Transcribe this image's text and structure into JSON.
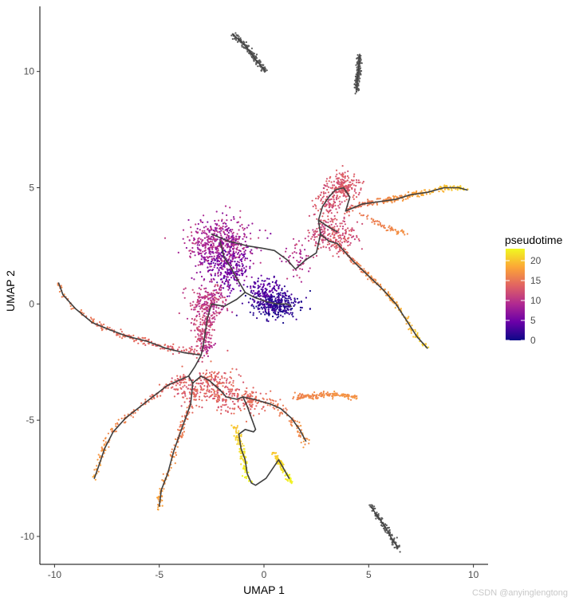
{
  "chart_data": {
    "type": "scatter",
    "xlabel": "UMAP 1",
    "ylabel": "UMAP 2",
    "xlim": [
      -10.7,
      10.7
    ],
    "ylim": [
      -11.2,
      12.8
    ],
    "x_ticks": [
      -10,
      -5,
      0,
      5,
      10
    ],
    "y_ticks": [
      -10,
      -5,
      0,
      5,
      10
    ],
    "grid": false,
    "legend": {
      "title": "pseudotime",
      "placement": "right",
      "range": [
        0,
        23
      ],
      "ticks": [
        0,
        5,
        10,
        15,
        20
      ],
      "colormap": [
        "#0d0887",
        "#6a00a8",
        "#b12a90",
        "#e16462",
        "#fca636",
        "#f0f921"
      ]
    },
    "na_color": "#595959",
    "trajectory_color": "#404040",
    "clusters": [
      {
        "cx": -2.1,
        "cy": 2.6,
        "sx": 0.75,
        "sy": 0.55,
        "n": 520,
        "t": [
          6,
          11
        ]
      },
      {
        "cx": -1.7,
        "cy": 1.5,
        "sx": 0.5,
        "sy": 0.5,
        "n": 260,
        "t": [
          3,
          8
        ]
      },
      {
        "cx": 0.6,
        "cy": 0.0,
        "sx": 0.55,
        "sy": 0.3,
        "n": 320,
        "t": [
          0,
          3
        ]
      },
      {
        "cx": 0.0,
        "cy": 0.6,
        "sx": 0.4,
        "sy": 0.3,
        "n": 120,
        "t": [
          2,
          5
        ]
      },
      {
        "cx": -2.6,
        "cy": 0.0,
        "sx": 0.45,
        "sy": 0.4,
        "n": 200,
        "t": [
          8,
          12
        ]
      },
      {
        "cx": -2.9,
        "cy": -1.2,
        "sx": 0.25,
        "sy": 0.55,
        "n": 140,
        "t": [
          10,
          13
        ]
      },
      {
        "cx": 1.6,
        "cy": 1.9,
        "sx": 0.35,
        "sy": 0.35,
        "n": 60,
        "t": [
          8,
          11
        ]
      },
      {
        "cx": 3.8,
        "cy": 5.1,
        "sx": 0.35,
        "sy": 0.3,
        "n": 200,
        "t": [
          12,
          14
        ]
      },
      {
        "cx": 3.1,
        "cy": 4.2,
        "sx": 0.35,
        "sy": 0.5,
        "n": 130,
        "t": [
          11,
          14
        ]
      },
      {
        "cx": 3.5,
        "cy": 2.9,
        "sx": 0.5,
        "sy": 0.35,
        "n": 160,
        "t": [
          11,
          14
        ]
      },
      {
        "cx": 2.6,
        "cy": 3.0,
        "sx": 0.25,
        "sy": 0.3,
        "n": 60,
        "t": [
          10,
          13
        ]
      },
      {
        "cx": -2.5,
        "cy": -3.5,
        "sx": 0.55,
        "sy": 0.4,
        "n": 200,
        "t": [
          12,
          15
        ]
      },
      {
        "cx": -1.7,
        "cy": -4.1,
        "sx": 0.4,
        "sy": 0.35,
        "n": 90,
        "t": [
          12,
          15
        ]
      },
      {
        "cx": -0.6,
        "cy": -4.2,
        "sx": 0.3,
        "sy": 0.25,
        "n": 60,
        "t": [
          13,
          15
        ]
      },
      {
        "cx": -3.8,
        "cy": -3.7,
        "sx": 0.3,
        "sy": 0.25,
        "n": 50,
        "t": [
          12,
          15
        ]
      }
    ],
    "branches": [
      {
        "pts": [
          [
            -3.1,
            -2.1
          ],
          [
            -4.5,
            -1.9
          ],
          [
            -6.5,
            -1.4
          ],
          [
            -8.0,
            -0.9
          ],
          [
            -9.0,
            -0.2
          ],
          [
            -9.6,
            0.4
          ],
          [
            -9.8,
            0.9
          ]
        ],
        "t": [
          13,
          16
        ],
        "w": 0.08,
        "n": 180
      },
      {
        "pts": [
          [
            -3.6,
            -3.1
          ],
          [
            -4.6,
            -3.5
          ],
          [
            -5.6,
            -4.2
          ],
          [
            -6.6,
            -4.9
          ],
          [
            -7.4,
            -5.6
          ],
          [
            -7.8,
            -6.6
          ],
          [
            -8.1,
            -7.5
          ]
        ],
        "t": [
          13,
          18
        ],
        "w": 0.08,
        "n": 150
      },
      {
        "pts": [
          [
            -3.2,
            -3.6
          ],
          [
            -3.5,
            -4.3
          ],
          [
            -3.9,
            -5.3
          ],
          [
            -4.3,
            -6.3
          ],
          [
            -4.6,
            -7.3
          ],
          [
            -4.9,
            -8.0
          ],
          [
            -5.0,
            -8.8
          ]
        ],
        "t": [
          14,
          18
        ],
        "w": 0.08,
        "n": 150
      },
      {
        "pts": [
          [
            -1.1,
            -4.1
          ],
          [
            -0.6,
            -4.1
          ],
          [
            0.3,
            -4.2
          ],
          [
            0.8,
            -4.5
          ],
          [
            1.3,
            -4.9
          ],
          [
            1.7,
            -5.5
          ],
          [
            2.0,
            -6.0
          ]
        ],
        "t": [
          14,
          17
        ],
        "w": 0.12,
        "n": 110
      },
      {
        "pts": [
          [
            1.4,
            -4.0
          ],
          [
            2.4,
            -3.95
          ],
          [
            3.2,
            -3.9
          ],
          [
            4.0,
            -3.95
          ],
          [
            4.4,
            -4.0
          ]
        ],
        "t": [
          16,
          17
        ],
        "w": 0.06,
        "n": 160
      },
      {
        "pts": [
          [
            -1.4,
            -5.2
          ],
          [
            -1.2,
            -5.9
          ],
          [
            -1.0,
            -6.5
          ],
          [
            -0.9,
            -7.0
          ],
          [
            -0.7,
            -7.7
          ]
        ],
        "t": [
          20,
          23
        ],
        "w": 0.08,
        "n": 110
      },
      {
        "pts": [
          [
            0.4,
            -6.4
          ],
          [
            0.7,
            -6.7
          ],
          [
            0.9,
            -7.1
          ],
          [
            1.2,
            -7.5
          ],
          [
            1.3,
            -7.7
          ]
        ],
        "t": [
          20,
          23
        ],
        "w": 0.06,
        "n": 90
      },
      {
        "pts": [
          [
            3.9,
            4.0
          ],
          [
            4.7,
            4.3
          ],
          [
            5.5,
            4.4
          ],
          [
            6.3,
            4.5
          ],
          [
            7.0,
            4.7
          ],
          [
            7.8,
            4.8
          ],
          [
            8.6,
            5.0
          ],
          [
            9.3,
            5.0
          ],
          [
            9.7,
            4.9
          ]
        ],
        "t": [
          14,
          21
        ],
        "w": 0.06,
        "n": 260
      },
      {
        "pts": [
          [
            3.5,
            2.6
          ],
          [
            4.3,
            1.8
          ],
          [
            5.0,
            1.2
          ],
          [
            5.7,
            0.6
          ],
          [
            6.3,
            0.0
          ],
          [
            6.8,
            -0.7
          ],
          [
            7.3,
            -1.4
          ],
          [
            7.8,
            -1.9
          ]
        ],
        "t": [
          14,
          21
        ],
        "w": 0.06,
        "n": 190
      },
      {
        "pts": [
          [
            4.5,
            3.9
          ],
          [
            5.2,
            3.6
          ],
          [
            5.8,
            3.3
          ],
          [
            6.4,
            3.1
          ],
          [
            6.8,
            3.0
          ]
        ],
        "t": [
          15,
          17
        ],
        "w": 0.06,
        "n": 60
      },
      {
        "pts": [
          [
            -2.8,
            -2.2
          ],
          [
            -2.6,
            -1.2
          ],
          [
            -2.4,
            0.0
          ],
          [
            -2.2,
            0.7
          ]
        ],
        "t": [
          9,
          12
        ],
        "w": 0.15,
        "n": 70
      }
    ],
    "unassigned_segments": [
      {
        "pts": [
          [
            -1.5,
            11.6
          ],
          [
            -1.1,
            11.3
          ],
          [
            -0.7,
            10.9
          ],
          [
            -0.4,
            10.5
          ],
          [
            -0.1,
            10.2
          ],
          [
            0.1,
            10.0
          ]
        ],
        "w": 0.07,
        "n": 150
      },
      {
        "pts": [
          [
            4.4,
            9.1
          ],
          [
            4.45,
            9.6
          ],
          [
            4.5,
            10.0
          ],
          [
            4.55,
            10.4
          ],
          [
            4.55,
            10.7
          ]
        ],
        "w": 0.06,
        "n": 140
      },
      {
        "pts": [
          [
            5.1,
            -8.7
          ],
          [
            5.4,
            -9.1
          ],
          [
            5.8,
            -9.6
          ],
          [
            6.1,
            -10.1
          ],
          [
            6.4,
            -10.5
          ]
        ],
        "w": 0.06,
        "n": 120
      }
    ],
    "trajectories": [
      [
        [
          -2.5,
          3.0
        ],
        [
          -1.7,
          2.7
        ],
        [
          -0.8,
          2.5
        ],
        [
          -0.1,
          2.4
        ],
        [
          0.5,
          2.3
        ],
        [
          1.1,
          1.9
        ],
        [
          1.5,
          1.5
        ],
        [
          2.0,
          1.9
        ],
        [
          2.5,
          2.2
        ],
        [
          2.7,
          3.0
        ],
        [
          2.6,
          3.6
        ],
        [
          2.8,
          4.2
        ],
        [
          3.1,
          4.6
        ],
        [
          3.4,
          4.9
        ],
        [
          3.8,
          5.0
        ],
        [
          4.1,
          4.6
        ],
        [
          3.9,
          4.0
        ]
      ],
      [
        [
          3.9,
          4.0
        ],
        [
          4.7,
          4.3
        ],
        [
          5.5,
          4.4
        ],
        [
          6.3,
          4.5
        ],
        [
          7.0,
          4.7
        ],
        [
          7.8,
          4.8
        ],
        [
          8.6,
          5.0
        ],
        [
          9.3,
          5.0
        ],
        [
          9.7,
          4.9
        ]
      ],
      [
        [
          2.7,
          3.0
        ],
        [
          3.1,
          2.7
        ],
        [
          3.5,
          2.6
        ],
        [
          4.3,
          1.8
        ],
        [
          5.0,
          1.2
        ],
        [
          5.7,
          0.6
        ],
        [
          6.3,
          0.0
        ],
        [
          6.8,
          -0.7
        ],
        [
          7.3,
          -1.4
        ],
        [
          7.8,
          -1.9
        ]
      ],
      [
        [
          2.6,
          3.6
        ],
        [
          3.1,
          3.3
        ],
        [
          3.5,
          3.1
        ]
      ],
      [
        [
          -2.1,
          2.7
        ],
        [
          -1.9,
          2.0
        ],
        [
          -1.6,
          1.6
        ],
        [
          -1.3,
          1.1
        ],
        [
          -0.9,
          0.5
        ],
        [
          -0.5,
          0.3
        ],
        [
          0.1,
          0.1
        ],
        [
          0.6,
          0.0
        ],
        [
          1.1,
          0.0
        ],
        [
          1.3,
          -0.1
        ]
      ],
      [
        [
          -0.9,
          0.5
        ],
        [
          -1.3,
          0.2
        ],
        [
          -1.9,
          -0.1
        ],
        [
          -2.5,
          0.0
        ],
        [
          -2.7,
          -0.6
        ],
        [
          -2.8,
          -1.2
        ],
        [
          -2.9,
          -1.8
        ],
        [
          -3.0,
          -2.2
        ]
      ],
      [
        [
          -3.0,
          -2.2
        ],
        [
          -3.8,
          -2.1
        ],
        [
          -4.7,
          -1.9
        ],
        [
          -5.6,
          -1.6
        ],
        [
          -6.5,
          -1.4
        ],
        [
          -7.4,
          -1.1
        ],
        [
          -8.2,
          -0.8
        ],
        [
          -9.0,
          -0.2
        ],
        [
          -9.6,
          0.4
        ],
        [
          -9.8,
          0.9
        ]
      ],
      [
        [
          -3.0,
          -2.2
        ],
        [
          -3.3,
          -2.7
        ],
        [
          -3.6,
          -3.1
        ],
        [
          -3.4,
          -3.4
        ],
        [
          -3.0,
          -3.1
        ],
        [
          -2.6,
          -3.3
        ],
        [
          -2.1,
          -3.7
        ],
        [
          -1.8,
          -4.0
        ],
        [
          -1.3,
          -4.1
        ],
        [
          -1.0,
          -4.0
        ]
      ],
      [
        [
          -3.6,
          -3.1
        ],
        [
          -4.6,
          -3.5
        ],
        [
          -5.6,
          -4.2
        ],
        [
          -6.6,
          -4.9
        ],
        [
          -7.2,
          -5.5
        ],
        [
          -7.6,
          -6.2
        ],
        [
          -7.9,
          -7.0
        ],
        [
          -8.1,
          -7.5
        ]
      ],
      [
        [
          -3.4,
          -3.4
        ],
        [
          -3.5,
          -4.3
        ],
        [
          -3.9,
          -5.3
        ],
        [
          -4.3,
          -6.3
        ],
        [
          -4.6,
          -7.3
        ],
        [
          -4.9,
          -8.0
        ],
        [
          -5.0,
          -8.7
        ]
      ],
      [
        [
          -1.0,
          -4.0
        ],
        [
          -0.5,
          -4.1
        ],
        [
          0.3,
          -4.3
        ],
        [
          0.8,
          -4.5
        ],
        [
          1.3,
          -4.9
        ],
        [
          1.7,
          -5.4
        ],
        [
          2.0,
          -5.9
        ]
      ],
      [
        [
          -1.0,
          -4.0
        ],
        [
          -0.8,
          -4.4
        ],
        [
          -0.6,
          -4.9
        ],
        [
          -0.4,
          -5.4
        ],
        [
          -0.5,
          -5.5
        ],
        [
          -0.9,
          -5.4
        ],
        [
          -1.2,
          -5.6
        ],
        [
          -1.1,
          -6.2
        ],
        [
          -0.9,
          -6.7
        ],
        [
          -0.8,
          -7.3
        ],
        [
          -0.6,
          -7.7
        ],
        [
          -0.4,
          -7.8
        ],
        [
          0.1,
          -7.5
        ],
        [
          0.7,
          -6.7
        ],
        [
          1.2,
          -7.5
        ]
      ]
    ]
  },
  "watermark": "CSDN @anyinglengtong"
}
